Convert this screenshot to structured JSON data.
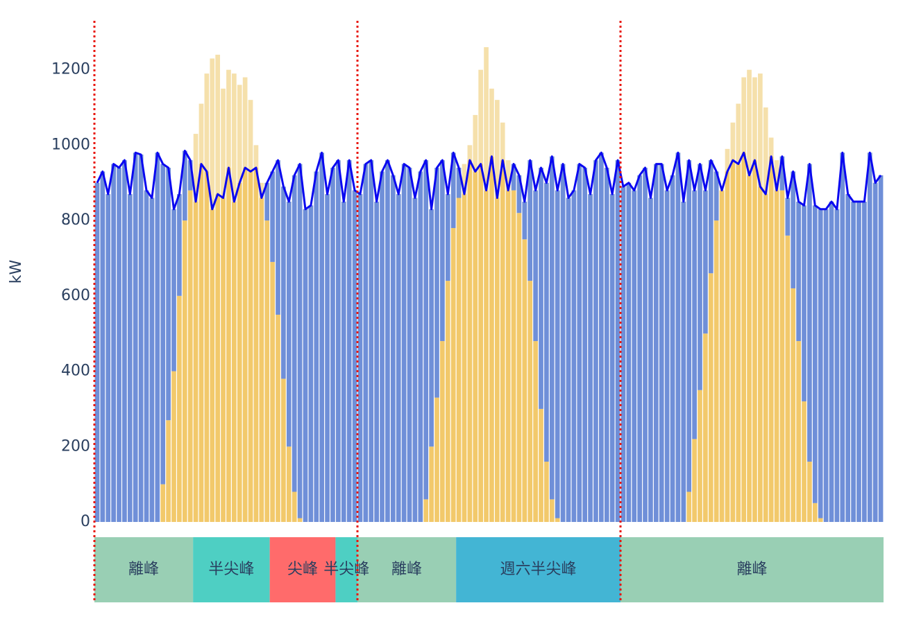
{
  "chart_data": {
    "type": "bar",
    "barmode": "stack",
    "y_label": "kW",
    "xlim": [
      0,
      72
    ],
    "ylim": [
      0,
      1330
    ],
    "yticks": [
      0,
      200,
      400,
      600,
      800,
      1000,
      1200
    ],
    "grid": false,
    "day_boundaries": [
      0,
      24,
      48
    ],
    "boundary_color": "#e8150c",
    "series": [
      {
        "type": "bar",
        "color": "#f2c96b",
        "values": [
          0,
          0,
          0,
          0,
          0,
          0,
          0,
          0,
          0,
          0,
          0,
          0,
          100,
          270,
          400,
          600,
          800,
          880,
          850,
          950,
          930,
          830,
          870,
          860,
          940,
          850,
          900,
          940,
          930,
          940,
          860,
          800,
          690,
          550,
          380,
          200,
          80,
          10,
          0,
          0,
          0,
          0,
          0,
          0,
          0,
          0,
          0,
          0,
          0,
          0,
          0,
          0,
          0,
          0,
          0,
          0,
          0,
          0,
          0,
          0,
          60,
          200,
          330,
          480,
          640,
          780,
          860,
          870,
          960,
          930,
          950,
          880,
          970,
          860,
          960,
          880,
          880,
          820,
          750,
          640,
          480,
          300,
          160,
          60,
          10,
          0,
          0,
          0,
          0,
          0,
          0,
          0,
          0,
          0,
          0,
          0,
          0,
          0,
          0,
          0,
          0,
          0,
          0,
          0,
          0,
          0,
          0,
          0,
          80,
          220,
          350,
          500,
          660,
          800,
          880,
          930,
          960,
          950,
          980,
          920,
          960,
          890,
          870,
          970,
          880,
          880,
          760,
          620,
          480,
          320,
          160,
          50,
          10,
          0,
          0,
          0,
          0,
          0,
          0,
          0,
          0,
          0,
          0,
          0
        ]
      },
      {
        "type": "bar",
        "color": "#6f8fd8",
        "values": [
          900,
          930,
          870,
          950,
          940,
          960,
          870,
          980,
          975,
          880,
          860,
          980,
          850,
          670,
          430,
          270,
          185,
          80,
          0,
          0,
          0,
          0,
          0,
          0,
          0,
          0,
          0,
          0,
          0,
          0,
          0,
          100,
          240,
          410,
          510,
          650,
          840,
          940,
          830,
          840,
          930,
          980,
          870,
          940,
          960,
          850,
          960,
          880,
          870,
          950,
          960,
          850,
          930,
          960,
          920,
          870,
          950,
          940,
          860,
          930,
          900,
          630,
          610,
          480,
          230,
          200,
          80,
          0,
          0,
          0,
          0,
          0,
          0,
          0,
          0,
          0,
          70,
          100,
          100,
          320,
          400,
          640,
          740,
          910,
          870,
          950,
          860,
          880,
          950,
          940,
          870,
          960,
          980,
          940,
          870,
          960,
          890,
          900,
          880,
          920,
          940,
          860,
          950,
          950,
          880,
          920,
          980,
          850,
          880,
          660,
          600,
          380,
          300,
          130,
          0,
          0,
          0,
          0,
          0,
          0,
          0,
          0,
          0,
          0,
          0,
          90,
          100,
          310,
          370,
          520,
          790,
          790,
          820,
          830,
          850,
          830,
          980,
          870,
          850,
          850,
          850,
          980,
          900,
          920
        ]
      },
      {
        "type": "bar",
        "color": "#f5e0ab",
        "values": [
          0,
          0,
          0,
          0,
          0,
          0,
          0,
          0,
          0,
          0,
          0,
          0,
          0,
          0,
          0,
          0,
          0,
          0,
          180,
          160,
          260,
          400,
          370,
          290,
          260,
          340,
          260,
          240,
          190,
          60,
          40,
          0,
          0,
          0,
          0,
          0,
          0,
          0,
          0,
          0,
          0,
          0,
          0,
          0,
          0,
          0,
          0,
          0,
          0,
          0,
          0,
          0,
          0,
          0,
          0,
          0,
          0,
          0,
          0,
          0,
          0,
          0,
          0,
          0,
          0,
          0,
          0,
          80,
          40,
          150,
          250,
          380,
          180,
          260,
          100,
          80,
          0,
          0,
          0,
          0,
          0,
          0,
          0,
          0,
          0,
          0,
          0,
          0,
          0,
          0,
          0,
          0,
          0,
          0,
          0,
          0,
          0,
          0,
          0,
          0,
          0,
          0,
          0,
          0,
          0,
          0,
          0,
          0,
          0,
          0,
          0,
          0,
          0,
          0,
          0,
          60,
          100,
          160,
          200,
          280,
          220,
          300,
          230,
          50,
          80,
          0,
          0,
          0,
          0,
          0,
          0,
          0,
          0,
          0,
          0,
          0,
          0,
          0,
          0,
          0,
          0,
          0,
          0,
          0
        ]
      },
      {
        "type": "line",
        "color": "#0a08f0",
        "values": [
          900,
          930,
          870,
          950,
          940,
          960,
          870,
          980,
          975,
          880,
          860,
          980,
          950,
          940,
          830,
          870,
          985,
          960,
          850,
          950,
          930,
          830,
          870,
          860,
          940,
          850,
          900,
          940,
          930,
          940,
          860,
          900,
          930,
          960,
          890,
          850,
          920,
          950,
          830,
          840,
          930,
          980,
          870,
          940,
          960,
          850,
          960,
          880,
          870,
          950,
          960,
          850,
          930,
          960,
          920,
          870,
          950,
          940,
          860,
          930,
          960,
          830,
          940,
          960,
          870,
          980,
          940,
          870,
          960,
          930,
          950,
          880,
          970,
          860,
          960,
          880,
          950,
          920,
          850,
          960,
          880,
          940,
          900,
          970,
          880,
          950,
          860,
          880,
          950,
          940,
          870,
          960,
          980,
          940,
          870,
          960,
          890,
          900,
          880,
          920,
          940,
          860,
          950,
          950,
          880,
          920,
          980,
          850,
          960,
          880,
          950,
          880,
          960,
          930,
          880,
          930,
          960,
          950,
          980,
          920,
          960,
          890,
          870,
          970,
          880,
          970,
          860,
          930,
          850,
          840,
          950,
          840,
          830,
          830,
          850,
          830,
          980,
          870,
          850,
          850,
          850,
          980,
          900,
          920
        ]
      }
    ],
    "periods": [
      {
        "label": "離峰",
        "start": 0,
        "end": 9,
        "color": "#99cfb4"
      },
      {
        "label": "半尖峰",
        "start": 9,
        "end": 16,
        "color": "#4ecfc3"
      },
      {
        "label": "尖峰",
        "start": 16,
        "end": 22,
        "color": "#ff6b6b"
      },
      {
        "label": "半尖峰",
        "start": 22,
        "end": 24,
        "color": "#4ecfc3"
      },
      {
        "label": "離峰",
        "start": 24,
        "end": 33,
        "color": "#99cfb4"
      },
      {
        "label": "週六半尖峰",
        "start": 33,
        "end": 48,
        "color": "#43b5d4"
      },
      {
        "label": "離峰",
        "start": 48,
        "end": 72,
        "color": "#99cfb4"
      }
    ]
  }
}
